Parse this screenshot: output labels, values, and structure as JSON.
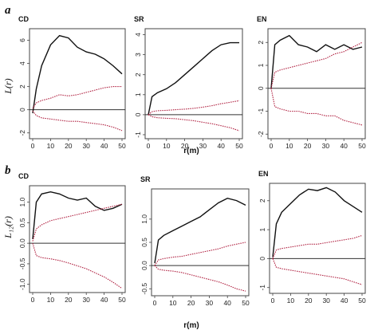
{
  "chart_data": [
    {
      "type": "line",
      "panel_label": "CD",
      "row": "a",
      "x": [
        0,
        2,
        5,
        10,
        15,
        20,
        25,
        30,
        35,
        40,
        45,
        50
      ],
      "xlim": [
        0,
        50
      ],
      "ylim": [
        -2.5,
        7
      ],
      "yticks": [
        -2,
        0,
        2,
        4,
        6
      ],
      "xticks": [
        0,
        10,
        20,
        30,
        40,
        50
      ],
      "series": [
        {
          "values": [
            -0.3,
            1.8,
            3.8,
            5.6,
            6.4,
            6.2,
            5.4,
            5.0,
            4.8,
            4.4,
            3.8,
            3.1
          ],
          "color": "#111111",
          "style": "solid"
        },
        {
          "values": [
            0.1,
            0.6,
            0.8,
            1.0,
            1.3,
            1.2,
            1.3,
            1.5,
            1.7,
            1.9,
            2.0,
            2.0
          ],
          "color": "#b02040",
          "style": "dotted"
        },
        {
          "values": [
            -0.1,
            -0.5,
            -0.7,
            -0.8,
            -0.9,
            -1.0,
            -1.0,
            -1.1,
            -1.2,
            -1.3,
            -1.5,
            -1.8
          ],
          "color": "#b02040",
          "style": "dotted"
        }
      ],
      "zero_line": 0
    },
    {
      "type": "line",
      "panel_label": "SR",
      "row": "a",
      "x": [
        0,
        2,
        5,
        10,
        15,
        20,
        25,
        30,
        35,
        40,
        45,
        50
      ],
      "xlim": [
        0,
        50
      ],
      "ylim": [
        -1.2,
        4.3
      ],
      "yticks": [
        -1,
        0,
        1,
        2,
        3,
        4
      ],
      "xticks": [
        0,
        10,
        20,
        30,
        40,
        50
      ],
      "series": [
        {
          "values": [
            0,
            0.9,
            1.1,
            1.3,
            1.6,
            2.0,
            2.4,
            2.8,
            3.2,
            3.5,
            3.6,
            3.6
          ],
          "color": "#111111",
          "style": "solid"
        },
        {
          "values": [
            0,
            0.15,
            0.2,
            0.22,
            0.25,
            0.28,
            0.32,
            0.38,
            0.45,
            0.55,
            0.62,
            0.7
          ],
          "color": "#b02040",
          "style": "dotted"
        },
        {
          "values": [
            0,
            -0.1,
            -0.15,
            -0.18,
            -0.2,
            -0.25,
            -0.3,
            -0.38,
            -0.45,
            -0.55,
            -0.65,
            -0.8
          ],
          "color": "#b02040",
          "style": "dotted"
        }
      ],
      "zero_line": 0
    },
    {
      "type": "line",
      "panel_label": "EN",
      "row": "a",
      "x": [
        0,
        2,
        5,
        10,
        15,
        20,
        25,
        30,
        35,
        40,
        45,
        50
      ],
      "xlim": [
        0,
        50
      ],
      "ylim": [
        -2.2,
        2.6
      ],
      "yticks": [
        -2,
        -1,
        0,
        1,
        2
      ],
      "xticks": [
        0,
        10,
        20,
        30,
        40,
        50
      ],
      "series": [
        {
          "values": [
            0,
            1.9,
            2.1,
            2.3,
            1.9,
            1.8,
            1.6,
            1.9,
            1.7,
            1.9,
            1.7,
            1.8
          ],
          "color": "#111111",
          "style": "solid"
        },
        {
          "values": [
            0,
            0.7,
            0.8,
            0.9,
            1.0,
            1.1,
            1.2,
            1.3,
            1.5,
            1.6,
            1.8,
            2.0
          ],
          "color": "#b02040",
          "style": "dotted"
        },
        {
          "values": [
            0,
            -0.8,
            -0.9,
            -1.0,
            -1.0,
            -1.1,
            -1.1,
            -1.2,
            -1.2,
            -1.4,
            -1.5,
            -1.6
          ],
          "color": "#b02040",
          "style": "dotted"
        }
      ],
      "zero_line": 0
    },
    {
      "type": "line",
      "panel_label": "CD",
      "row": "b",
      "x": [
        0,
        2,
        5,
        10,
        15,
        20,
        25,
        30,
        35,
        40,
        45,
        50
      ],
      "xlim": [
        0,
        50
      ],
      "ylim": [
        -1.2,
        1.4
      ],
      "yticks": [
        -1.0,
        -0.5,
        0.0,
        0.5,
        1.0
      ],
      "xticks": [
        0,
        10,
        20,
        30,
        40,
        50
      ],
      "series": [
        {
          "values": [
            0.1,
            1.0,
            1.2,
            1.25,
            1.2,
            1.1,
            1.05,
            1.1,
            0.9,
            0.8,
            0.85,
            0.95
          ],
          "color": "#111111",
          "style": "solid"
        },
        {
          "values": [
            0.05,
            0.35,
            0.45,
            0.55,
            0.6,
            0.65,
            0.7,
            0.75,
            0.8,
            0.85,
            0.9,
            0.95
          ],
          "color": "#b02040",
          "style": "dotted"
        },
        {
          "values": [
            0,
            -0.3,
            -0.35,
            -0.38,
            -0.42,
            -0.48,
            -0.55,
            -0.62,
            -0.72,
            -0.82,
            -0.95,
            -1.1
          ],
          "color": "#b02040",
          "style": "dotted"
        }
      ],
      "zero_line": 0
    },
    {
      "type": "line",
      "panel_label": "SR",
      "row": "b",
      "x": [
        0,
        2,
        5,
        10,
        15,
        20,
        25,
        30,
        35,
        40,
        45,
        50
      ],
      "xlim": [
        0,
        50
      ],
      "ylim": [
        -0.65,
        1.65
      ],
      "yticks": [
        -0.5,
        0.0,
        0.5,
        1.0
      ],
      "xticks": [
        0,
        10,
        20,
        30,
        40,
        50
      ],
      "series": [
        {
          "values": [
            0.05,
            0.55,
            0.65,
            0.75,
            0.85,
            0.95,
            1.05,
            1.2,
            1.35,
            1.45,
            1.4,
            1.3
          ],
          "color": "#111111",
          "style": "solid"
        },
        {
          "values": [
            0,
            0.12,
            0.15,
            0.18,
            0.2,
            0.24,
            0.28,
            0.32,
            0.36,
            0.42,
            0.46,
            0.5
          ],
          "color": "#b02040",
          "style": "dotted"
        },
        {
          "values": [
            0,
            -0.08,
            -0.1,
            -0.12,
            -0.15,
            -0.2,
            -0.25,
            -0.3,
            -0.35,
            -0.42,
            -0.5,
            -0.55
          ],
          "color": "#b02040",
          "style": "dotted"
        }
      ],
      "zero_line": 0
    },
    {
      "type": "line",
      "panel_label": "EN",
      "row": "b",
      "x": [
        0,
        2,
        5,
        10,
        15,
        20,
        25,
        30,
        35,
        40,
        45,
        50
      ],
      "xlim": [
        0,
        50
      ],
      "ylim": [
        -1.2,
        2.6
      ],
      "yticks": [
        -1.0,
        0.0,
        1.0,
        2.0
      ],
      "xticks": [
        0,
        10,
        20,
        30,
        40,
        50
      ],
      "series": [
        {
          "values": [
            0.05,
            1.2,
            1.6,
            1.9,
            2.2,
            2.4,
            2.35,
            2.45,
            2.3,
            2.0,
            1.8,
            1.6
          ],
          "color": "#111111",
          "style": "solid"
        },
        {
          "values": [
            0,
            0.3,
            0.35,
            0.4,
            0.45,
            0.5,
            0.5,
            0.55,
            0.6,
            0.65,
            0.7,
            0.8
          ],
          "color": "#b02040",
          "style": "dotted"
        },
        {
          "values": [
            0,
            -0.3,
            -0.35,
            -0.4,
            -0.45,
            -0.5,
            -0.55,
            -0.6,
            -0.65,
            -0.7,
            -0.8,
            -0.9
          ],
          "color": "#b02040",
          "style": "dotted"
        }
      ],
      "zero_line": 0
    }
  ],
  "labels": {
    "row_a": "a",
    "row_b": "b",
    "ylabel_a": "L(r)",
    "ylabel_b": "L₁₂(r)",
    "xlabel_a": "r(m)",
    "xlabel_b": "r(m)"
  }
}
